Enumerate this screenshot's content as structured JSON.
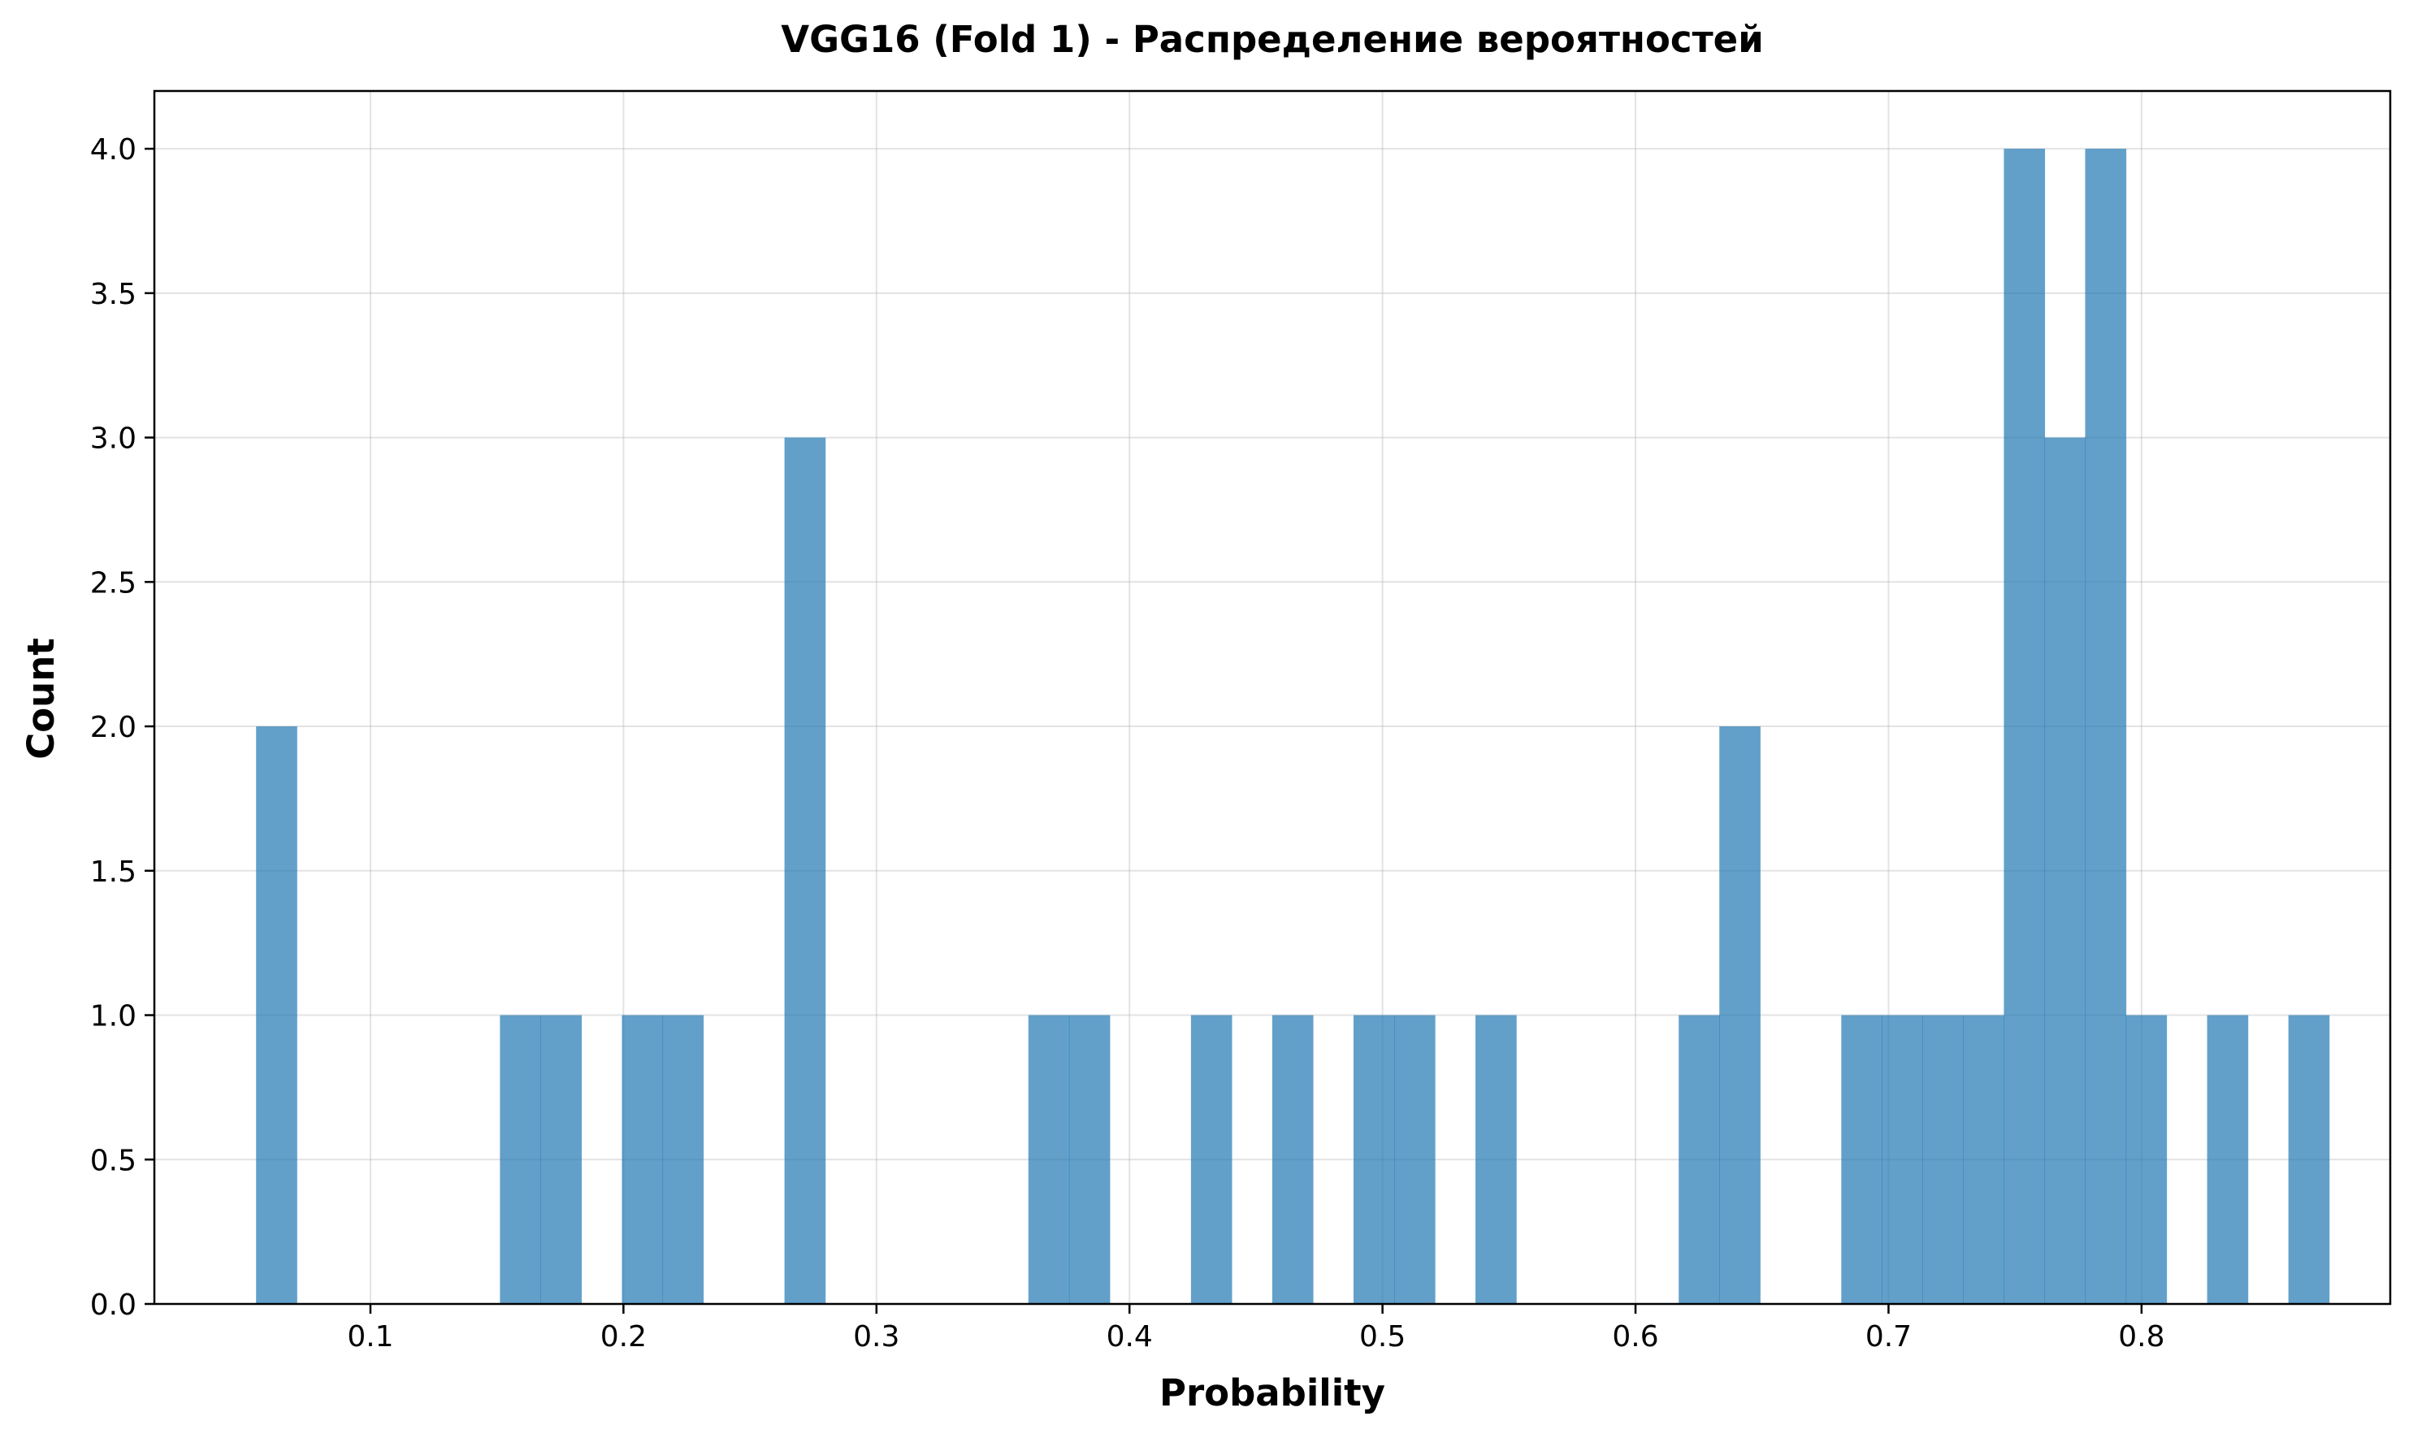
{
  "chart_data": {
    "type": "bar",
    "title": "VGG16 (Fold 1) - Распределение вероятностей",
    "xlabel": "Probability",
    "ylabel": "Count",
    "xlim": [
      0.0146,
      0.8983
    ],
    "ylim": [
      0,
      4.2
    ],
    "xticks": [
      0.1,
      0.2,
      0.3,
      0.4,
      0.5,
      0.6,
      0.7,
      0.8
    ],
    "xtick_labels": [
      "0.1",
      "0.2",
      "0.3",
      "0.4",
      "0.5",
      "0.6",
      "0.7",
      "0.8"
    ],
    "yticks": [
      0,
      0.5,
      1.0,
      1.5,
      2.0,
      2.5,
      3.0,
      3.5,
      4.0
    ],
    "ytick_labels": [
      "0.0",
      "0.5",
      "1.0",
      "1.5",
      "2.0",
      "2.5",
      "3.0",
      "3.5",
      "4.0"
    ],
    "grid": true,
    "color": "#1f77b4",
    "opacity": 0.7,
    "bin_start": 0.0548,
    "bin_width": 0.016065,
    "counts": [
      2,
      0,
      0,
      0,
      0,
      0,
      1,
      1,
      0,
      1,
      1,
      0,
      0,
      3,
      0,
      0,
      0,
      0,
      0,
      1,
      1,
      0,
      0,
      1,
      0,
      1,
      0,
      1,
      1,
      0,
      1,
      0,
      0,
      0,
      0,
      1,
      2,
      0,
      0,
      1,
      1,
      1,
      1,
      4,
      3,
      4,
      1,
      0,
      1,
      0,
      1
    ]
  }
}
